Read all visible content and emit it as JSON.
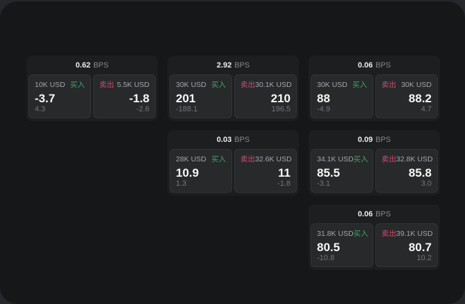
{
  "labels": {
    "bps_suffix": "BPS",
    "buy": "买入",
    "sell": "卖出"
  },
  "colors": {
    "buy": "#3da563",
    "sell": "#d34a6a",
    "window_bg": "#161718",
    "card_bg": "#1d1e20",
    "panel_bg": "#27292b"
  },
  "cards": [
    {
      "bps": "0.62",
      "col": 1,
      "row": 1,
      "buy": {
        "amount": "10K USD",
        "price": "-3.7",
        "delta": "4.3"
      },
      "sell": {
        "amount": "5.5K USD",
        "price": "-1.8",
        "delta": "-2.6"
      }
    },
    {
      "bps": "2.92",
      "col": 2,
      "row": 1,
      "buy": {
        "amount": "30K USD",
        "price": "201",
        "delta": "-188.1"
      },
      "sell": {
        "amount": "30.1K USD",
        "price": "210",
        "delta": "196.5"
      }
    },
    {
      "bps": "0.06",
      "col": 3,
      "row": 1,
      "buy": {
        "amount": "30K USD",
        "price": "88",
        "delta": "-4.9"
      },
      "sell": {
        "amount": "30K USD",
        "price": "88.2",
        "delta": "4.7"
      }
    },
    {
      "bps": "0.03",
      "col": 2,
      "row": 2,
      "buy": {
        "amount": "28K USD",
        "price": "10.9",
        "delta": "1.3"
      },
      "sell": {
        "amount": "32.6K USD",
        "price": "11",
        "delta": "-1.8"
      }
    },
    {
      "bps": "0.09",
      "col": 3,
      "row": 2,
      "buy": {
        "amount": "34.1K USD",
        "price": "85.5",
        "delta": "-3.1"
      },
      "sell": {
        "amount": "32.8K USD",
        "price": "85.8",
        "delta": "3.0"
      }
    },
    {
      "bps": "0.06",
      "col": 3,
      "row": 3,
      "buy": {
        "amount": "31.8K USD",
        "price": "80.5",
        "delta": "-10.8"
      },
      "sell": {
        "amount": "39.1K USD",
        "price": "80.7",
        "delta": "10.2"
      }
    }
  ]
}
